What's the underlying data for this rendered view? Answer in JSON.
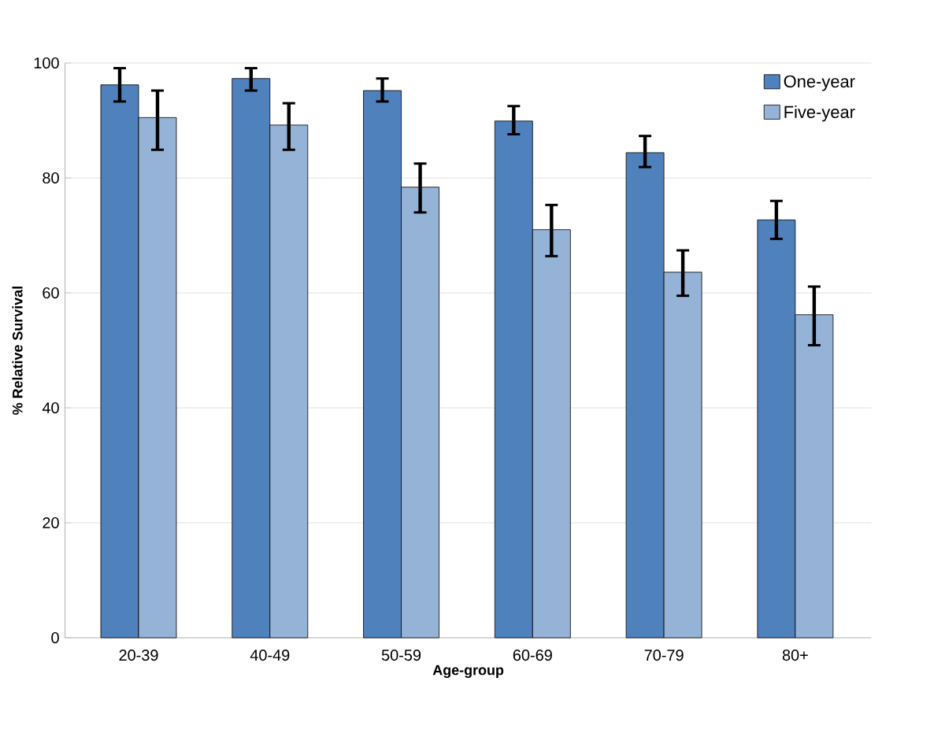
{
  "chart_data": {
    "type": "bar",
    "xlabel": "Age-group",
    "ylabel": "% Relative Survival",
    "categories": [
      "20-39",
      "40-49",
      "50-59",
      "60-69",
      "70-79",
      "80+"
    ],
    "series": [
      {
        "name": "One-year",
        "color": "#4f81bd",
        "values": [
          96.2,
          97.3,
          95.2,
          89.9,
          84.4,
          72.7
        ],
        "errors": [
          [
            93.3,
            99.1
          ],
          [
            95.2,
            99.1
          ],
          [
            93.3,
            97.3
          ],
          [
            87.6,
            92.5
          ],
          [
            81.9,
            87.3
          ],
          [
            69.4,
            76.0
          ]
        ]
      },
      {
        "name": "Five-year",
        "color": "#95b3d7",
        "values": [
          90.5,
          89.2,
          78.4,
          71.0,
          63.6,
          56.2
        ],
        "errors": [
          [
            84.9,
            95.2
          ],
          [
            84.9,
            93.0
          ],
          [
            74.0,
            82.5
          ],
          [
            66.4,
            75.3
          ],
          [
            59.5,
            67.4
          ],
          [
            50.9,
            61.1
          ]
        ]
      }
    ],
    "ylim": [
      0,
      100
    ],
    "yticks": [
      0,
      20,
      40,
      60,
      80,
      100
    ],
    "grid": "y",
    "legend": "top right"
  }
}
